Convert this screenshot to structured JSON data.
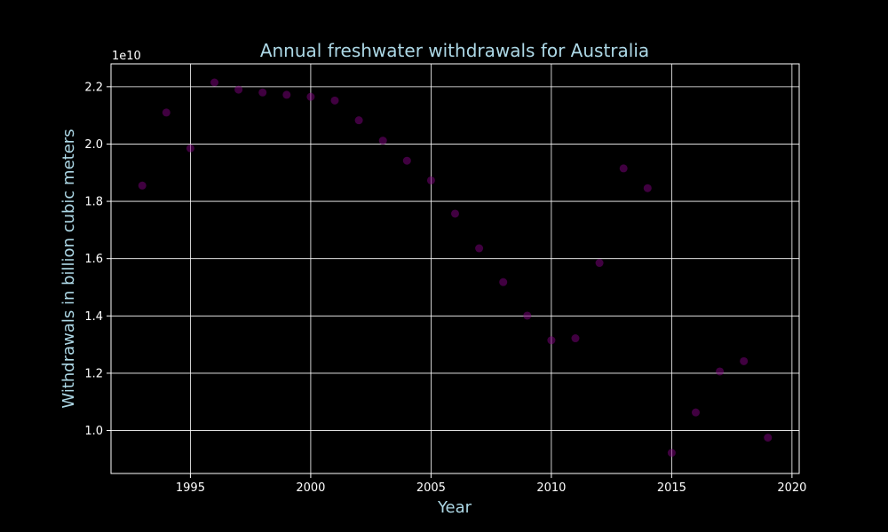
{
  "chart_data": {
    "type": "scatter",
    "title": "Annual freshwater withdrawals for Australia",
    "xlabel": "Year",
    "ylabel": "Withdrawals in billion cubic meters",
    "y_offset_label": "1e10",
    "xlim": [
      1991.7,
      2020.3
    ],
    "ylim": [
      0.85,
      2.28
    ],
    "x_ticks": [
      1995,
      2000,
      2005,
      2010,
      2015,
      2020
    ],
    "y_ticks": [
      1.0,
      1.2,
      1.4,
      1.6,
      1.8,
      2.0,
      2.2
    ],
    "x_tick_labels": [
      "1995",
      "2000",
      "2005",
      "2010",
      "2015",
      "2020"
    ],
    "y_tick_labels": [
      "1.0",
      "1.2",
      "1.4",
      "1.6",
      "1.8",
      "2.0",
      "2.2"
    ],
    "grid": true,
    "x": [
      1993,
      1994,
      1995,
      1996,
      1997,
      1998,
      1999,
      2000,
      2001,
      2002,
      2003,
      2004,
      2005,
      2006,
      2007,
      2008,
      2009,
      2010,
      2011,
      2012,
      2013,
      2014,
      2015,
      2016,
      2017,
      2018,
      2019
    ],
    "y": [
      1.855,
      2.11,
      1.985,
      2.215,
      2.19,
      2.18,
      2.172,
      2.165,
      2.152,
      2.083,
      2.012,
      1.942,
      1.873,
      1.757,
      1.636,
      1.518,
      1.401,
      1.315,
      1.322,
      1.585,
      1.915,
      1.846,
      0.922,
      1.063,
      1.206,
      1.242,
      0.975
    ]
  },
  "colors": {
    "background": "#000000",
    "title": "#add8e6",
    "axis_label": "#add8e6",
    "tick": "#ffffff",
    "grid": "#ffffff",
    "spine": "#ffffff",
    "marker": "#800080"
  }
}
